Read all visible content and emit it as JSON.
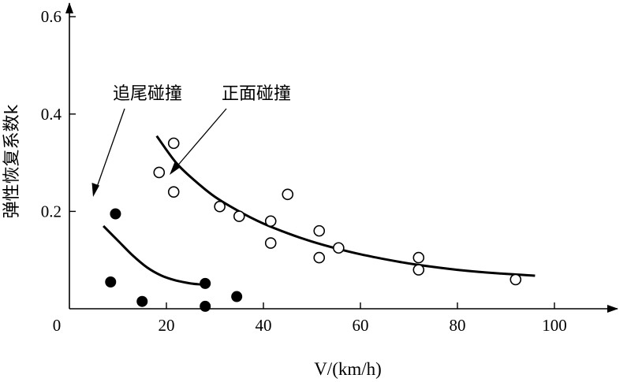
{
  "chart_data": {
    "type": "scatter",
    "xlabel": "V/(km/h)",
    "ylabel": "弹性恢复系数k",
    "xlim": [
      0,
      115
    ],
    "ylim": [
      0,
      0.64
    ],
    "x_ticks": [
      "20",
      "40",
      "60",
      "80",
      "100"
    ],
    "y_ticks": [
      "0.2",
      "0.4",
      "0.6"
    ],
    "origin_label": "0",
    "grid": false,
    "series": [
      {
        "name": "追尾碰撞",
        "marker": "filled-circle",
        "points": [
          [
            9.5,
            0.195
          ],
          [
            8.5,
            0.055
          ],
          [
            15,
            0.015
          ],
          [
            28,
            0.005
          ],
          [
            28,
            0.052
          ],
          [
            34.5,
            0.025
          ]
        ],
        "fit": [
          [
            7,
            0.17
          ],
          [
            10,
            0.14
          ],
          [
            13,
            0.11
          ],
          [
            16,
            0.085
          ],
          [
            19,
            0.068
          ],
          [
            22,
            0.058
          ],
          [
            25,
            0.052
          ],
          [
            27,
            0.05
          ]
        ]
      },
      {
        "name": "正面碰撞",
        "marker": "open-circle",
        "points": [
          [
            18.5,
            0.28
          ],
          [
            21.5,
            0.34
          ],
          [
            21.5,
            0.24
          ],
          [
            31,
            0.21
          ],
          [
            35,
            0.19
          ],
          [
            41.5,
            0.18
          ],
          [
            41.5,
            0.135
          ],
          [
            45,
            0.235
          ],
          [
            51.5,
            0.16
          ],
          [
            51.5,
            0.105
          ],
          [
            55.5,
            0.125
          ],
          [
            72,
            0.105
          ],
          [
            72,
            0.08
          ],
          [
            92,
            0.06
          ]
        ],
        "fit": [
          [
            18,
            0.355
          ],
          [
            22,
            0.3
          ],
          [
            26,
            0.262
          ],
          [
            30,
            0.23
          ],
          [
            35,
            0.2
          ],
          [
            40,
            0.175
          ],
          [
            45,
            0.155
          ],
          [
            50,
            0.138
          ],
          [
            55,
            0.124
          ],
          [
            60,
            0.112
          ],
          [
            66,
            0.1
          ],
          [
            72,
            0.09
          ],
          [
            80,
            0.08
          ],
          [
            88,
            0.073
          ],
          [
            96,
            0.068
          ]
        ]
      }
    ],
    "annotations": [
      "追尾碰撞",
      "正面碰撞"
    ]
  }
}
